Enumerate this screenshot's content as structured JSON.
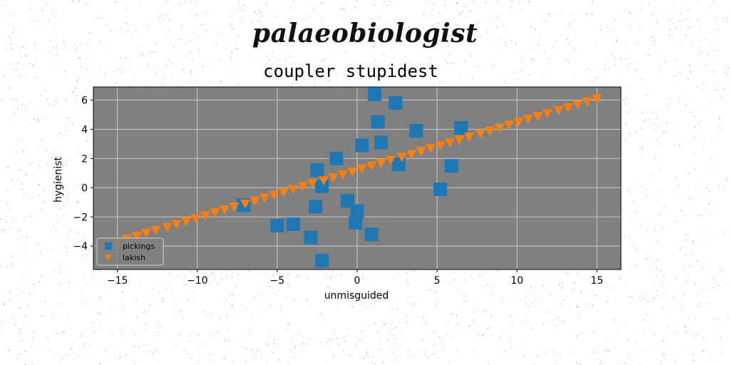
{
  "figure": {
    "suptitle": "palaeobiologist"
  },
  "colors": {
    "plot_background": "#808080",
    "grid": "#c8c8c8",
    "series_pickings": "#1f77b4",
    "series_lakish": "#ff7f0e"
  },
  "chart_data": {
    "type": "scatter",
    "title": "coupler stupidest",
    "xlabel": "unmisguided",
    "ylabel": "hygienist",
    "xlim": [
      -16.5,
      16.5
    ],
    "ylim": [
      -5.6,
      6.9
    ],
    "xticks": [
      -15,
      -10,
      -5,
      0,
      5,
      10,
      15
    ],
    "yticks": [
      -4,
      -2,
      0,
      2,
      4,
      6
    ],
    "grid": true,
    "legend_position": "lower-left",
    "series": [
      {
        "name": "pickings",
        "marker": "square",
        "points": [
          [
            1.1,
            6.4
          ],
          [
            2.4,
            5.8
          ],
          [
            1.3,
            4.5
          ],
          [
            3.7,
            3.9
          ],
          [
            6.5,
            4.1
          ],
          [
            1.5,
            3.1
          ],
          [
            0.3,
            2.9
          ],
          [
            -1.3,
            2.0
          ],
          [
            2.6,
            1.6
          ],
          [
            5.9,
            1.5
          ],
          [
            -2.5,
            1.2
          ],
          [
            -2.2,
            0.1
          ],
          [
            5.2,
            -0.1
          ],
          [
            -0.6,
            -0.9
          ],
          [
            -7.1,
            -1.2
          ],
          [
            -2.6,
            -1.3
          ],
          [
            0.0,
            -1.6
          ],
          [
            -5.0,
            -2.6
          ],
          [
            -4.0,
            -2.5
          ],
          [
            -0.1,
            -2.4
          ],
          [
            -2.9,
            -3.4
          ],
          [
            0.9,
            -3.2
          ],
          [
            -2.2,
            -5.0
          ]
        ]
      },
      {
        "name": "lakish",
        "marker": "triangle-down",
        "points": [
          [
            -15.0,
            -3.7
          ],
          [
            -14.4,
            -3.5
          ],
          [
            -13.8,
            -3.3
          ],
          [
            -13.2,
            -3.1
          ],
          [
            -12.6,
            -2.9
          ],
          [
            -11.9,
            -2.7
          ],
          [
            -11.3,
            -2.5
          ],
          [
            -10.7,
            -2.3
          ],
          [
            -10.1,
            -2.1
          ],
          [
            -9.5,
            -1.9
          ],
          [
            -8.9,
            -1.7
          ],
          [
            -8.3,
            -1.5
          ],
          [
            -7.7,
            -1.3
          ],
          [
            -7.0,
            -1.1
          ],
          [
            -6.4,
            -0.9
          ],
          [
            -5.8,
            -0.7
          ],
          [
            -5.2,
            -0.5
          ],
          [
            -4.6,
            -0.3
          ],
          [
            -4.0,
            -0.1
          ],
          [
            -3.4,
            0.1
          ],
          [
            -2.8,
            0.3
          ],
          [
            -2.1,
            0.5
          ],
          [
            -1.5,
            0.7
          ],
          [
            -0.9,
            0.9
          ],
          [
            -0.3,
            1.1
          ],
          [
            0.3,
            1.3
          ],
          [
            0.9,
            1.5
          ],
          [
            1.5,
            1.7
          ],
          [
            2.1,
            1.9
          ],
          [
            2.8,
            2.1
          ],
          [
            3.4,
            2.3
          ],
          [
            4.0,
            2.5
          ],
          [
            4.6,
            2.7
          ],
          [
            5.2,
            2.9
          ],
          [
            5.8,
            3.1
          ],
          [
            6.4,
            3.3
          ],
          [
            7.0,
            3.5
          ],
          [
            7.7,
            3.7
          ],
          [
            8.3,
            3.9
          ],
          [
            8.9,
            4.1
          ],
          [
            9.5,
            4.3
          ],
          [
            10.1,
            4.5
          ],
          [
            10.7,
            4.7
          ],
          [
            11.3,
            4.9
          ],
          [
            11.9,
            5.1
          ],
          [
            12.6,
            5.3
          ],
          [
            13.2,
            5.5
          ],
          [
            13.8,
            5.7
          ],
          [
            14.4,
            5.9
          ],
          [
            15.0,
            6.1
          ]
        ]
      }
    ]
  }
}
